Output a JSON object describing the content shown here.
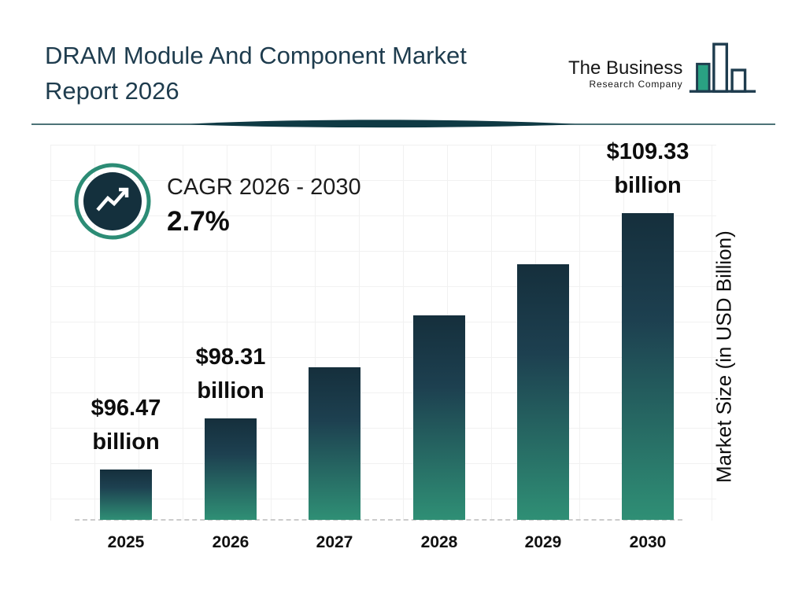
{
  "header": {
    "title_line1": "DRAM Module And Component Market",
    "title_line2": "Report 2026"
  },
  "logo": {
    "line1": "The Business",
    "line2": "Research Company"
  },
  "cagr": {
    "label": "CAGR 2026 - 2030",
    "value": "2.7%"
  },
  "chart_data": {
    "type": "bar",
    "title": "DRAM Module And Component Market Report 2026",
    "ylabel": "Market Size (in USD Billion)",
    "unit": "USD Billion",
    "grid": true,
    "legend": false,
    "cagr_label": "CAGR 2026 - 2030",
    "cagr_pct": 2.7,
    "categories": [
      "2025",
      "2026",
      "2027",
      "2028",
      "2029",
      "2030"
    ],
    "values": [
      96.47,
      98.31,
      100.96,
      103.69,
      106.49,
      109.33
    ],
    "value_labels_shown": [
      "2025",
      "2026",
      "2030"
    ],
    "bars": [
      {
        "year": "2025",
        "value": 96.47,
        "label_value": "$96.47",
        "label_unit": "billion"
      },
      {
        "year": "2026",
        "value": 98.31,
        "label_value": "$98.31",
        "label_unit": "billion"
      },
      {
        "year": "2027",
        "value": 100.96
      },
      {
        "year": "2028",
        "value": 103.69
      },
      {
        "year": "2029",
        "value": 106.49
      },
      {
        "year": "2030",
        "value": 109.33,
        "label_value": "$109.33",
        "label_unit": "billion"
      }
    ]
  },
  "colors": {
    "title_text": "#1e3c4e",
    "bar_top": "#152f3c",
    "bar_bottom": "#2f8f75",
    "accent_teal": "#2c8c75",
    "badge_circle": "#14303d",
    "logo_green": "#2aa183"
  }
}
